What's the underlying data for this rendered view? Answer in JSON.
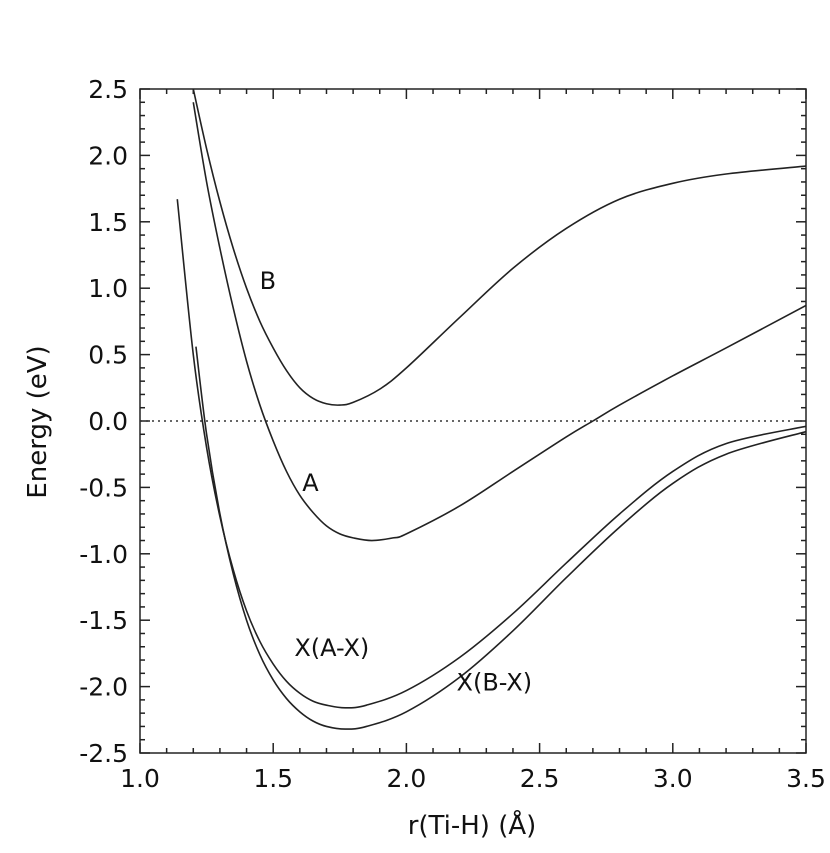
{
  "chart_data": {
    "type": "line",
    "title": "",
    "xlabel": "r(Ti-H) (Å)",
    "ylabel": "Energy (eV)",
    "xlim": [
      1.0,
      3.5
    ],
    "ylim": [
      -2.5,
      2.5
    ],
    "x_ticks": [
      1.0,
      1.5,
      2.0,
      2.5,
      3.0,
      3.5
    ],
    "x_tick_labels": [
      "1.0",
      "1.5",
      "2.0",
      "2.5",
      "3.0",
      "3.5"
    ],
    "y_ticks": [
      2.5,
      2.0,
      1.5,
      1.0,
      0.5,
      0.0,
      -0.5,
      -1.0,
      -1.5,
      -2.0,
      -2.5
    ],
    "y_tick_labels": [
      "2.5",
      "2.0",
      "1.5",
      "1.0",
      "0.5",
      "0.0",
      "-0.5",
      "-1.0",
      "-1.5",
      "-2.0",
      "-2.5"
    ],
    "grid": false,
    "reference_line": {
      "y": 0.0,
      "style": "dotted"
    },
    "series": [
      {
        "name": "B",
        "x": [
          1.2,
          1.25,
          1.3,
          1.35,
          1.4,
          1.45,
          1.5,
          1.55,
          1.6,
          1.65,
          1.7,
          1.75,
          1.8,
          1.9,
          2.0,
          2.2,
          2.4,
          2.6,
          2.8,
          3.0,
          3.2,
          3.5
        ],
        "y": [
          2.5,
          2.05,
          1.65,
          1.3,
          1.0,
          0.75,
          0.55,
          0.38,
          0.25,
          0.17,
          0.13,
          0.12,
          0.14,
          0.24,
          0.4,
          0.78,
          1.15,
          1.45,
          1.67,
          1.79,
          1.86,
          1.92
        ]
      },
      {
        "name": "A",
        "x": [
          1.2,
          1.25,
          1.3,
          1.35,
          1.4,
          1.45,
          1.5,
          1.55,
          1.6,
          1.65,
          1.7,
          1.75,
          1.8,
          1.87,
          1.95,
          2.0,
          2.2,
          2.4,
          2.6,
          2.7,
          2.8,
          3.0,
          3.2,
          3.5
        ],
        "y": [
          2.4,
          1.8,
          1.3,
          0.85,
          0.45,
          0.12,
          -0.15,
          -0.38,
          -0.56,
          -0.69,
          -0.79,
          -0.85,
          -0.88,
          -0.9,
          -0.88,
          -0.85,
          -0.64,
          -0.38,
          -0.12,
          0.0,
          0.12,
          0.34,
          0.55,
          0.87
        ]
      },
      {
        "name": "X(A-X)",
        "x": [
          1.14,
          1.2,
          1.25,
          1.3,
          1.35,
          1.4,
          1.45,
          1.5,
          1.55,
          1.6,
          1.65,
          1.7,
          1.77,
          1.85,
          2.0,
          2.2,
          2.4,
          2.6,
          2.8,
          3.0,
          3.2,
          3.5
        ],
        "y": [
          1.67,
          0.5,
          -0.2,
          -0.72,
          -1.12,
          -1.43,
          -1.66,
          -1.83,
          -1.96,
          -2.05,
          -2.11,
          -2.14,
          -2.16,
          -2.14,
          -2.03,
          -1.78,
          -1.45,
          -1.07,
          -0.7,
          -0.38,
          -0.17,
          -0.04
        ]
      },
      {
        "name": "X(B-X)",
        "x": [
          1.21,
          1.25,
          1.3,
          1.35,
          1.4,
          1.45,
          1.5,
          1.55,
          1.6,
          1.65,
          1.7,
          1.77,
          1.85,
          2.0,
          2.2,
          2.4,
          2.6,
          2.8,
          3.0,
          3.2,
          3.5
        ],
        "y": [
          0.56,
          -0.1,
          -0.7,
          -1.15,
          -1.5,
          -1.76,
          -1.95,
          -2.09,
          -2.19,
          -2.26,
          -2.3,
          -2.32,
          -2.3,
          -2.19,
          -1.93,
          -1.58,
          -1.18,
          -0.8,
          -0.47,
          -0.25,
          -0.08
        ]
      }
    ],
    "annotations": [
      {
        "text": "B",
        "x": 1.48,
        "y": 1.06
      },
      {
        "text": "A",
        "x": 1.64,
        "y": -0.46
      },
      {
        "text": "X(A-X)",
        "x": 1.72,
        "y": -1.7
      },
      {
        "text": "X(B-X)",
        "x": 2.33,
        "y": -1.96
      }
    ]
  }
}
